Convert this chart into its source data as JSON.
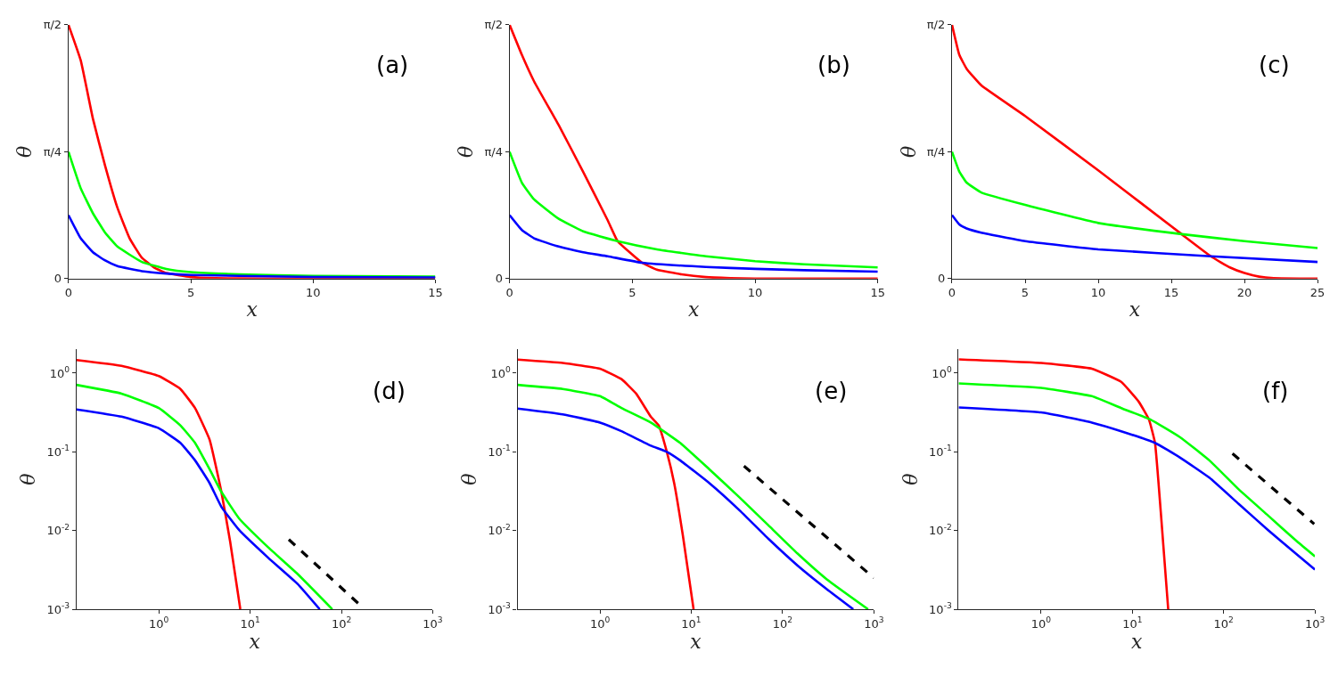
{
  "chart_data": [
    {
      "type": "line",
      "xlabel": "x",
      "ylabel": "θ",
      "annotations": [
        "(a)"
      ],
      "xlim": [
        0,
        15
      ],
      "xticks": [
        0,
        5,
        10,
        15
      ],
      "ylim": [
        0,
        1.5708
      ],
      "yticks": [
        0,
        {
          "value": 0.7854,
          "label": "π/4"
        },
        {
          "value": 1.5708,
          "label": "π/2"
        }
      ],
      "line_style": "solid",
      "marker": "none",
      "series": [
        {
          "color": "#ff0000",
          "x": [
            0,
            0.5,
            1,
            1.5,
            2,
            2.5,
            3,
            3.5,
            4,
            5,
            6,
            8,
            15
          ],
          "values": [
            1.5708,
            1.351,
            0.989,
            0.697,
            0.439,
            0.249,
            0.129,
            0.069,
            0.034,
            0.009,
            0.002,
            0,
            0
          ]
        },
        {
          "color": "#00ff00",
          "x": [
            0,
            0.5,
            1,
            1.5,
            2,
            3,
            4,
            5,
            7,
            10,
            15
          ],
          "values": [
            0.785,
            0.559,
            0.404,
            0.284,
            0.198,
            0.103,
            0.06,
            0.04,
            0.026,
            0.017,
            0.012
          ]
        },
        {
          "color": "#0000ff",
          "x": [
            0,
            0.5,
            1,
            1.5,
            2,
            3,
            4,
            5,
            10,
            15
          ],
          "values": [
            0.393,
            0.249,
            0.163,
            0.112,
            0.077,
            0.046,
            0.031,
            0.022,
            0.01,
            0.007
          ]
        }
      ]
    },
    {
      "type": "line",
      "xlabel": "x",
      "ylabel": "θ",
      "annotations": [
        "(b)"
      ],
      "xlim": [
        0,
        15
      ],
      "xticks": [
        0,
        5,
        10,
        15
      ],
      "ylim": [
        0,
        1.5708
      ],
      "yticks": [
        0,
        {
          "value": 0.7854,
          "label": "π/4"
        },
        {
          "value": 1.5708,
          "label": "π/2"
        }
      ],
      "line_style": "solid",
      "marker": "none",
      "series": [
        {
          "color": "#ff0000",
          "x": [
            0,
            0.5,
            1,
            2,
            3,
            4,
            4.4,
            5.4,
            6,
            7,
            8,
            9,
            10,
            15
          ],
          "values": [
            1.5708,
            1.385,
            1.22,
            0.95,
            0.66,
            0.36,
            0.232,
            0.098,
            0.055,
            0.026,
            0.009,
            0.003,
            0,
            0
          ]
        },
        {
          "color": "#00ff00",
          "x": [
            0,
            0.5,
            1,
            2,
            3,
            4.4,
            6,
            8,
            10,
            12,
            15
          ],
          "values": [
            0.785,
            0.594,
            0.49,
            0.37,
            0.292,
            0.232,
            0.181,
            0.138,
            0.108,
            0.088,
            0.069
          ]
        },
        {
          "color": "#0000ff",
          "x": [
            0,
            0.5,
            1,
            2,
            3,
            4,
            5.4,
            8,
            10,
            12,
            15
          ],
          "values": [
            0.393,
            0.301,
            0.249,
            0.198,
            0.163,
            0.138,
            0.098,
            0.072,
            0.06,
            0.052,
            0.043
          ]
        }
      ]
    },
    {
      "type": "line",
      "xlabel": "x",
      "ylabel": "θ",
      "annotations": [
        "(c)"
      ],
      "xlim": [
        0,
        25
      ],
      "xticks": [
        0,
        5,
        10,
        15,
        20,
        25
      ],
      "ylim": [
        0,
        1.5708
      ],
      "yticks": [
        0,
        {
          "value": 0.7854,
          "label": "π/4"
        },
        {
          "value": 1.5708,
          "label": "π/2"
        }
      ],
      "line_style": "solid",
      "marker": "none",
      "series": [
        {
          "color": "#ff0000",
          "x": [
            0,
            0.5,
            1,
            2,
            5,
            10,
            15.7,
            17.7,
            19,
            20,
            21,
            22,
            25
          ],
          "values": [
            1.5708,
            1.385,
            1.299,
            1.196,
            1.006,
            0.67,
            0.275,
            0.138,
            0.069,
            0.034,
            0.012,
            0.003,
            0
          ]
        },
        {
          "color": "#00ff00",
          "x": [
            0,
            0.5,
            1,
            2,
            5,
            10,
            15.7,
            20,
            25
          ],
          "values": [
            0.785,
            0.662,
            0.594,
            0.533,
            0.456,
            0.344,
            0.275,
            0.232,
            0.189
          ]
        },
        {
          "color": "#0000ff",
          "x": [
            0,
            0.5,
            1,
            2,
            5,
            10,
            17.7,
            25
          ],
          "values": [
            0.393,
            0.335,
            0.31,
            0.284,
            0.232,
            0.181,
            0.138,
            0.103
          ]
        }
      ]
    },
    {
      "type": "line",
      "xlabel": "x",
      "ylabel": "θ",
      "annotations": [
        "(d)"
      ],
      "log": "xy",
      "xlim": [
        0.125,
        1000
      ],
      "xticks": [
        {
          "value": 1,
          "label": "10$^{0}$"
        },
        {
          "value": 10,
          "label": "10$^{1}$"
        },
        {
          "value": 100,
          "label": "10$^{2}$"
        },
        {
          "value": 1000,
          "label": "10$^{3}$"
        }
      ],
      "ylim": [
        0.001,
        2
      ],
      "yticks": [
        {
          "value": 0.001,
          "label": "10$^{-3}$"
        },
        {
          "value": 0.01,
          "label": "10$^{-2}$"
        },
        {
          "value": 0.1,
          "label": "10$^{-1}$"
        },
        {
          "value": 1,
          "label": "10$^{0}$"
        }
      ],
      "line_style": "solid",
      "marker": "none",
      "series": [
        {
          "color": "#ff0000",
          "x": [
            0.125,
            0.39,
            1,
            1.72,
            2.49,
            3.6,
            4.84,
            6.04,
            7.8
          ],
          "values": [
            1.47,
            1.24,
            0.92,
            0.63,
            0.36,
            0.142,
            0.031,
            0.0072,
            0.001
          ]
        },
        {
          "color": "#00ff00",
          "x": [
            0.125,
            0.39,
            1,
            1.72,
            2.49,
            3.6,
            4.84,
            7.55,
            15.8,
            33.1,
            79.4
          ],
          "values": [
            0.71,
            0.55,
            0.36,
            0.217,
            0.13,
            0.06,
            0.031,
            0.0143,
            0.0061,
            0.0028,
            0.001
          ]
        },
        {
          "color": "#0000ff",
          "x": [
            0.125,
            0.39,
            1,
            1.72,
            2.49,
            3.6,
            4.84,
            7.55,
            15.8,
            33.1,
            57.8
          ],
          "values": [
            0.346,
            0.28,
            0.199,
            0.13,
            0.078,
            0.04,
            0.02,
            0.0102,
            0.0045,
            0.0021,
            0.001
          ]
        },
        {
          "color": "#000000",
          "line_style": "dashed",
          "x": [
            26.5,
            160
          ],
          "values": [
            0.0077,
            0.00113
          ]
        }
      ]
    },
    {
      "type": "line",
      "xlabel": "x",
      "ylabel": "θ",
      "annotations": [
        "(e)"
      ],
      "log": "xy",
      "xlim": [
        0.125,
        1000
      ],
      "xticks": [
        {
          "value": 1,
          "label": "10$^{0}$"
        },
        {
          "value": 10,
          "label": "10$^{1}$"
        },
        {
          "value": 100,
          "label": "10$^{2}$"
        },
        {
          "value": 1000,
          "label": "10$^{3}$"
        }
      ],
      "ylim": [
        0.001,
        2
      ],
      "yticks": [
        {
          "value": 0.001,
          "label": "10$^{-3}$"
        },
        {
          "value": 0.01,
          "label": "10$^{-2}$"
        },
        {
          "value": 0.1,
          "label": "10$^{-1}$"
        },
        {
          "value": 1,
          "label": "10$^{0}$"
        }
      ],
      "line_style": "solid",
      "marker": "none",
      "series": [
        {
          "color": "#ff0000",
          "x": [
            0.125,
            0.39,
            1,
            1.72,
            2.49,
            3.6,
            4.4,
            5.4,
            6.5,
            8.1,
            10.6
          ],
          "values": [
            1.49,
            1.35,
            1.14,
            0.84,
            0.55,
            0.28,
            0.217,
            0.1,
            0.04,
            0.0086,
            0.001
          ]
        },
        {
          "color": "#00ff00",
          "x": [
            0.125,
            0.39,
            1,
            1.72,
            3.6,
            7.55,
            15.8,
            33.1,
            69.7,
            146,
            305,
            864
          ],
          "values": [
            0.71,
            0.63,
            0.51,
            0.36,
            0.236,
            0.13,
            0.06,
            0.027,
            0.0117,
            0.0051,
            0.0024,
            0.001
          ]
        },
        {
          "color": "#0000ff",
          "x": [
            0.125,
            0.39,
            1,
            1.72,
            3.6,
            5.4,
            7.55,
            15.8,
            33.1,
            69.7,
            146,
            305,
            595
          ],
          "values": [
            0.355,
            0.3,
            0.236,
            0.183,
            0.12,
            0.1,
            0.078,
            0.04,
            0.0185,
            0.0079,
            0.0036,
            0.0018,
            0.001
          ]
        },
        {
          "color": "#000000",
          "line_style": "dashed",
          "x": [
            37.8,
            1000
          ],
          "values": [
            0.066,
            0.0025
          ]
        }
      ]
    },
    {
      "type": "line",
      "xlabel": "x",
      "ylabel": "θ",
      "annotations": [
        "(f)"
      ],
      "log": "xy",
      "xlim": [
        0.125,
        1000
      ],
      "xticks": [
        {
          "value": 1,
          "label": "10$^{0}$"
        },
        {
          "value": 10,
          "label": "10$^{1}$"
        },
        {
          "value": 100,
          "label": "10$^{2}$"
        },
        {
          "value": 1000,
          "label": "10$^{3}$"
        }
      ],
      "ylim": [
        0.001,
        2
      ],
      "yticks": [
        {
          "value": 0.001,
          "label": "10$^{-3}$"
        },
        {
          "value": 0.01,
          "label": "10$^{-2}$"
        },
        {
          "value": 0.1,
          "label": "10$^{-1}$"
        },
        {
          "value": 1,
          "label": "10$^{0}$"
        }
      ],
      "line_style": "solid",
      "marker": "none",
      "series": [
        {
          "color": "#ff0000",
          "x": [
            0.125,
            1,
            3.6,
            7.55,
            11.8,
            15.2,
            17.7,
            20.5,
            24.7
          ],
          "values": [
            1.5,
            1.35,
            1.14,
            0.775,
            0.43,
            0.257,
            0.13,
            0.017,
            0.001
          ]
        },
        {
          "color": "#00ff00",
          "x": [
            0.125,
            1,
            3.6,
            7.55,
            15.8,
            33.1,
            69.7,
            146,
            305,
            642,
            1000
          ],
          "values": [
            0.74,
            0.65,
            0.51,
            0.36,
            0.257,
            0.154,
            0.078,
            0.0334,
            0.0156,
            0.0072,
            0.0047
          ]
        },
        {
          "color": "#0000ff",
          "x": [
            0.125,
            1,
            3.6,
            7.55,
            17.7,
            33.1,
            69.7,
            146,
            305,
            642,
            1000
          ],
          "values": [
            0.367,
            0.317,
            0.236,
            0.183,
            0.13,
            0.085,
            0.047,
            0.0218,
            0.0102,
            0.0049,
            0.0032
          ]
        },
        {
          "color": "#000000",
          "line_style": "dashed",
          "x": [
            125,
            982
          ],
          "values": [
            0.095,
            0.0121
          ]
        }
      ]
    }
  ]
}
